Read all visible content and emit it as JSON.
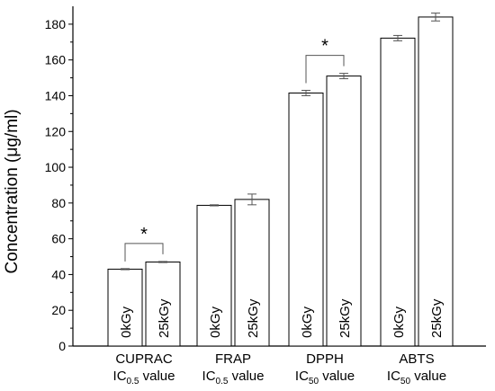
{
  "chart_data": {
    "type": "bar",
    "ylabel": "Concentration (μg/ml)",
    "ylim": [
      0,
      190
    ],
    "yticks": [
      0,
      20,
      40,
      60,
      80,
      100,
      120,
      140,
      160,
      180
    ],
    "grid": false,
    "bar_fill": "#ffffff",
    "bar_stroke": "#000000",
    "groups": [
      {
        "label_line1": "CUPRAC",
        "label_line2": {
          "base": "IC",
          "sub": "0.5",
          "rest": " value"
        },
        "bars": [
          {
            "label": "0kGy",
            "value": 43,
            "error": 0.3
          },
          {
            "label": "25kGy",
            "value": 47,
            "error": 0.3
          }
        ],
        "significance": "*"
      },
      {
        "label_line1": "FRAP",
        "label_line2": {
          "base": "IC",
          "sub": "0.5",
          "rest": " value"
        },
        "bars": [
          {
            "label": "0kGy",
            "value": 78.7,
            "error": 0.3
          },
          {
            "label": "25kGy",
            "value": 82,
            "error": 3
          }
        ],
        "significance": ""
      },
      {
        "label_line1": "DPPH",
        "label_line2": {
          "base": "IC",
          "sub": "50",
          "rest": " value"
        },
        "bars": [
          {
            "label": "0kGy",
            "value": 141.5,
            "error": 1.5
          },
          {
            "label": "25kGy",
            "value": 151,
            "error": 1.5
          }
        ],
        "significance": "*"
      },
      {
        "label_line1": "ABTS",
        "label_line2": {
          "base": "IC",
          "sub": "50",
          "rest": " value"
        },
        "bars": [
          {
            "label": "0kGy",
            "value": 172.2,
            "error": 1.5
          },
          {
            "label": "25kGy",
            "value": 184,
            "error": 2.2
          }
        ],
        "significance": ""
      }
    ]
  }
}
